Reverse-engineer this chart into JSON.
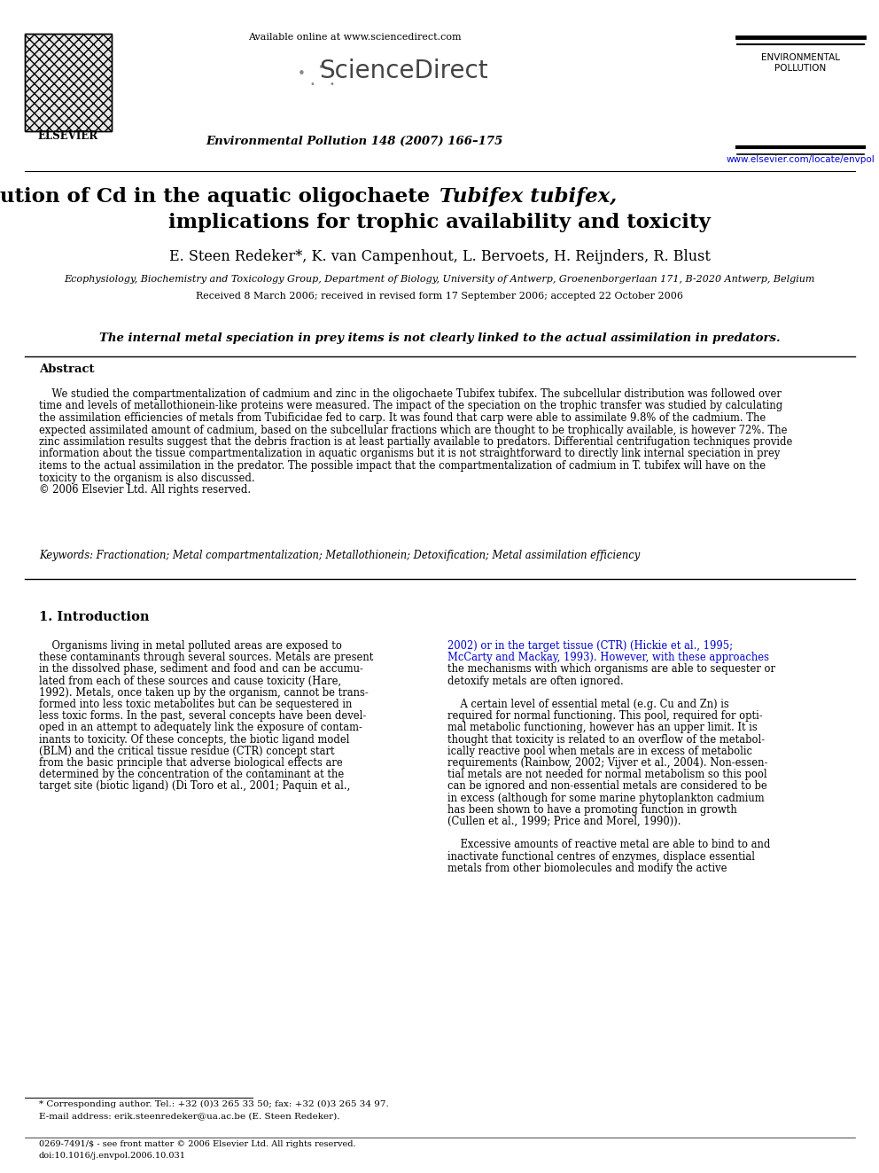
{
  "bg_color": "#ffffff",
  "available_online": "Available online at www.sciencedirect.com",
  "journal": "Environmental Pollution 148 (2007) 166–175",
  "journal_name_1": "ENVIRONMENTAL",
  "journal_name_2": "POLLUTION",
  "url": "www.elsevier.com/locate/envpol",
  "title_line1_normal": "Subcellular distribution of Cd in the aquatic oligochaete ",
  "title_line1_italic": "Tubifex tubifex,",
  "title_line2": "implications for trophic availability and toxicity",
  "authors": "E. Steen Redeker*, K. van Campenhout, L. Bervoets, H. Reijnders, R. Blust",
  "affiliation": "Ecophysiology, Biochemistry and Toxicology Group, Department of Biology, University of Antwerp, Groenenborgerlaan 171, B-2020 Antwerp, Belgium",
  "received": "Received 8 March 2006; received in revised form 17 September 2006; accepted 22 October 2006",
  "highlight": "The internal metal speciation in prey items is not clearly linked to the actual assimilation in predators.",
  "abstract_title": "Abstract",
  "abstract_line1": "    We studied the compartmentalization of cadmium and zinc in the oligochaete Tubifex tubifex. The subcellular distribution was followed over",
  "abstract_line2": "time and levels of metallothionein-like proteins were measured. The impact of the speciation on the trophic transfer was studied by calculating",
  "abstract_line3": "the assimilation efficiencies of metals from Tubificidae fed to carp. It was found that carp were able to assimilate 9.8% of the cadmium. The",
  "abstract_line4": "expected assimilated amount of cadmium, based on the subcellular fractions which are thought to be trophically available, is however 72%. The",
  "abstract_line5": "zinc assimilation results suggest that the debris fraction is at least partially available to predators. Differential centrifugation techniques provide",
  "abstract_line6": "information about the tissue compartmentalization in aquatic organisms but it is not straightforward to directly link internal speciation in prey",
  "abstract_line7": "items to the actual assimilation in the predator. The possible impact that the compartmentalization of cadmium in T. tubifex will have on the",
  "abstract_line8": "toxicity to the organism is also discussed.",
  "abstract_line9": "© 2006 Elsevier Ltd. All rights reserved.",
  "keywords": "Keywords: Fractionation; Metal compartmentalization; Metallothionein; Detoxification; Metal assimilation efficiency",
  "section1_title": "1. Introduction",
  "col1_lines": [
    "    Organisms living in metal polluted areas are exposed to",
    "these contaminants through several sources. Metals are present",
    "in the dissolved phase, sediment and food and can be accumu-",
    "lated from each of these sources and cause toxicity (Hare,",
    "1992). Metals, once taken up by the organism, cannot be trans-",
    "formed into less toxic metabolites but can be sequestered in",
    "less toxic forms. In the past, several concepts have been devel-",
    "oped in an attempt to adequately link the exposure of contam-",
    "inants to toxicity. Of these concepts, the biotic ligand model",
    "(BLM) and the critical tissue residue (CTR) concept start",
    "from the basic principle that adverse biological effects are",
    "determined by the concentration of the contaminant at the",
    "target site (biotic ligand) (Di Toro et al., 2001; Paquin et al.,"
  ],
  "col2_lines": [
    "2002) or in the target tissue (CTR) (Hickie et al., 1995;",
    "McCarty and Mackay, 1993). However, with these approaches",
    "the mechanisms with which organisms are able to sequester or",
    "detoxify metals are often ignored.",
    "",
    "    A certain level of essential metal (e.g. Cu and Zn) is",
    "required for normal functioning. This pool, required for opti-",
    "mal metabolic functioning, however has an upper limit. It is",
    "thought that toxicity is related to an overflow of the metabol-",
    "ically reactive pool when metals are in excess of metabolic",
    "requirements (Rainbow, 2002; Vijver et al., 2004). Non-essen-",
    "tial metals are not needed for normal metabolism so this pool",
    "can be ignored and non-essential metals are considered to be",
    "in excess (although for some marine phytoplankton cadmium",
    "has been shown to have a promoting function in growth",
    "(Cullen et al., 1999; Price and Morel, 1990)).",
    "",
    "    Excessive amounts of reactive metal are able to bind to and",
    "inactivate functional centres of enzymes, displace essential",
    "metals from other biomolecules and modify the active"
  ],
  "col2_blue_lines": [
    0,
    1
  ],
  "footnote1": "* Corresponding author. Tel.: +32 (0)3 265 33 50; fax: +32 (0)3 265 34 97.",
  "footnote2": "E-mail address: erik.steenredeker@ua.ac.be (E. Steen Redeker).",
  "footer_issn": "0269-7491/$ - see front matter © 2006 Elsevier Ltd. All rights reserved.",
  "footer_doi": "doi:10.1016/j.envpol.2006.10.031"
}
